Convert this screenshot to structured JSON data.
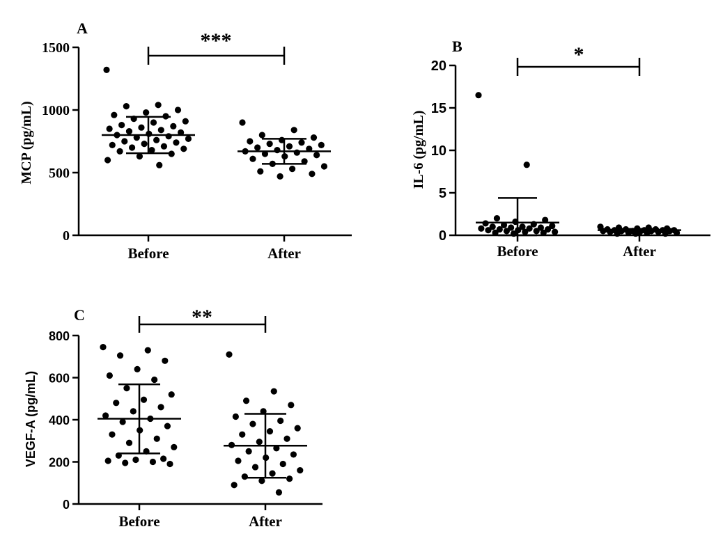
{
  "chart_data": [
    {
      "panel": "A",
      "type": "scatter",
      "ylabel": "MCP (pg/mL)",
      "ylim": [
        0,
        1500
      ],
      "yticks": [
        "0",
        "500",
        "1000",
        "1500"
      ],
      "categories": [
        "Before",
        "After"
      ],
      "significance": "***",
      "groups": [
        {
          "name": "Before",
          "mean": 800,
          "sd_upper": 945,
          "sd_lower": 655,
          "points": [
            1320,
            1040,
            1030,
            1000,
            980,
            960,
            950,
            930,
            910,
            900,
            880,
            870,
            860,
            850,
            840,
            830,
            820,
            810,
            800,
            790,
            780,
            770,
            760,
            750,
            740,
            730,
            720,
            710,
            700,
            690,
            680,
            670,
            650,
            630,
            600,
            560
          ]
        },
        {
          "name": "After",
          "mean": 670,
          "sd_upper": 770,
          "sd_lower": 570,
          "points": [
            900,
            840,
            800,
            780,
            760,
            750,
            740,
            730,
            720,
            710,
            700,
            690,
            680,
            670,
            660,
            650,
            640,
            630,
            610,
            590,
            570,
            550,
            530,
            510,
            490,
            470
          ]
        }
      ]
    },
    {
      "panel": "B",
      "type": "scatter",
      "ylabel": "IL-6 (pg/mL)",
      "ylim": [
        0,
        20
      ],
      "yticks": [
        "0",
        "5",
        "10",
        "15",
        "20"
      ],
      "categories": [
        "Before",
        "After"
      ],
      "significance": "*",
      "groups": [
        {
          "name": "Before",
          "mean": 1.5,
          "sd_upper": 4.4,
          "sd_lower": 0,
          "points": [
            16.5,
            8.3,
            2.0,
            1.8,
            1.6,
            1.4,
            1.3,
            1.2,
            1.1,
            1.0,
            1.0,
            0.9,
            0.9,
            0.8,
            0.8,
            0.7,
            0.7,
            0.6,
            0.6,
            0.5,
            0.5,
            0.4,
            0.4,
            0.3,
            0.3,
            0.2
          ]
        },
        {
          "name": "After",
          "mean": 0.6,
          "sd_upper": 0.75,
          "sd_lower": 0.45,
          "points": [
            1.0,
            0.9,
            0.9,
            0.8,
            0.8,
            0.7,
            0.7,
            0.7,
            0.6,
            0.6,
            0.6,
            0.6,
            0.5,
            0.5,
            0.5,
            0.5,
            0.5,
            0.4,
            0.4,
            0.4,
            0.3,
            0.3,
            0.3,
            0.2,
            0.2,
            0.2
          ]
        }
      ]
    },
    {
      "panel": "C",
      "type": "scatter",
      "ylabel": "VEGF-A (pg/mL)",
      "ylim": [
        0,
        800
      ],
      "yticks": [
        "0",
        "200",
        "400",
        "600",
        "800"
      ],
      "categories": [
        "Before",
        "After"
      ],
      "significance": "**",
      "groups": [
        {
          "name": "Before",
          "mean": 405,
          "sd_upper": 568,
          "sd_lower": 240,
          "points": [
            745,
            730,
            705,
            680,
            640,
            610,
            590,
            550,
            520,
            495,
            480,
            460,
            440,
            420,
            405,
            390,
            370,
            350,
            330,
            310,
            290,
            270,
            250,
            230,
            215,
            210,
            205,
            200,
            195,
            190
          ]
        },
        {
          "name": "After",
          "mean": 277,
          "sd_upper": 428,
          "sd_lower": 125,
          "points": [
            710,
            535,
            490,
            470,
            440,
            415,
            395,
            380,
            360,
            345,
            330,
            310,
            295,
            280,
            265,
            250,
            235,
            220,
            205,
            190,
            175,
            160,
            145,
            130,
            120,
            110,
            90,
            55
          ]
        }
      ]
    }
  ]
}
